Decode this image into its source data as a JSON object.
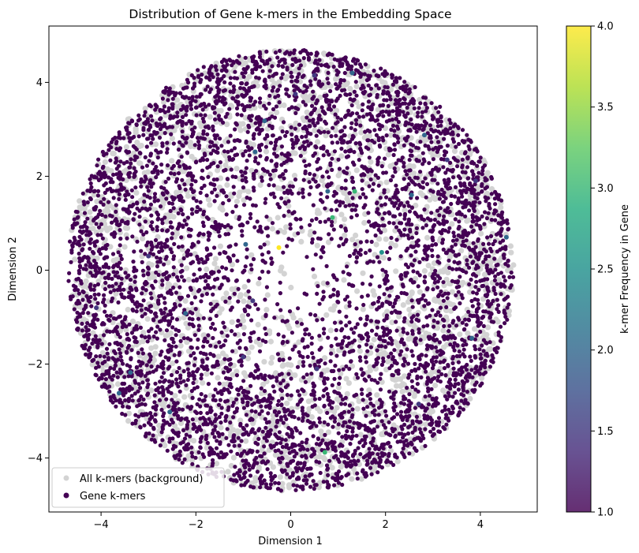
{
  "chart_data": {
    "type": "scatter",
    "title": "Distribution of Gene k-mers in the Embedding Space",
    "xlabel": "Dimension 1",
    "ylabel": "Dimension 2",
    "xlim": [
      -5.1,
      5.2
    ],
    "ylim": [
      -5.15,
      5.2
    ],
    "xticks": [
      -4,
      -2,
      0,
      2,
      4
    ],
    "yticks": [
      -4,
      -2,
      0,
      2,
      4
    ],
    "xtick_labels": [
      "−4",
      "−2",
      "0",
      "2",
      "4"
    ],
    "ytick_labels": [
      "−4",
      "−2",
      "0",
      "2",
      "4"
    ],
    "grid": false,
    "legend_position": "lower-left",
    "cloud_radius": 4.7,
    "series": [
      {
        "name": "All k-mers (background)",
        "color": "#d3d3d3",
        "kind": "background"
      },
      {
        "name": "Gene k-mers",
        "color": "#440154",
        "kind": "gene",
        "color_by": "k-mer frequency"
      }
    ],
    "highlighted_points": [
      {
        "x": -0.25,
        "y": 0.48,
        "value": 4.0
      },
      {
        "x": 1.35,
        "y": 1.68,
        "value": 3.0
      },
      {
        "x": 0.88,
        "y": 1.12,
        "value": 3.0
      },
      {
        "x": 0.72,
        "y": -3.88,
        "value": 3.0
      },
      {
        "x": 1.92,
        "y": 0.38,
        "value": 2.5
      },
      {
        "x": 0.78,
        "y": 1.68,
        "value": 2.0
      },
      {
        "x": -0.75,
        "y": 2.52,
        "value": 2.0
      },
      {
        "x": -0.55,
        "y": 3.18,
        "value": 2.0
      },
      {
        "x": -3.62,
        "y": -2.62,
        "value": 2.0
      },
      {
        "x": -3.38,
        "y": -2.18,
        "value": 2.0
      },
      {
        "x": 3.82,
        "y": -1.45,
        "value": 2.0
      },
      {
        "x": 2.82,
        "y": 2.88,
        "value": 2.0
      },
      {
        "x": -2.22,
        "y": -0.92,
        "value": 2.0
      },
      {
        "x": 4.55,
        "y": 0.7,
        "value": 2.0
      },
      {
        "x": 2.55,
        "y": 1.6,
        "value": 2.0
      },
      {
        "x": -2.55,
        "y": -3.02,
        "value": 2.0
      },
      {
        "x": -0.95,
        "y": 0.55,
        "value": 2.0
      },
      {
        "x": 1.3,
        "y": 4.2,
        "value": 2.0
      },
      {
        "x": 0.5,
        "y": 4.15,
        "value": 1.5
      },
      {
        "x": 0.1,
        "y": 3.75,
        "value": 1.5
      },
      {
        "x": 3.3,
        "y": 2.35,
        "value": 1.5
      },
      {
        "x": -0.8,
        "y": -0.65,
        "value": 1.5
      },
      {
        "x": 0.55,
        "y": -2.1,
        "value": 1.5
      },
      {
        "x": -4.1,
        "y": -0.8,
        "value": 1.5
      },
      {
        "x": -1.0,
        "y": -1.85,
        "value": 1.5
      },
      {
        "x": 2.7,
        "y": -2.85,
        "value": 1.5
      },
      {
        "x": -3.0,
        "y": 0.3,
        "value": 1.5
      },
      {
        "x": 3.9,
        "y": 1.9,
        "value": 1.5
      }
    ],
    "colorbar": {
      "label": "k-mer Frequency in Gene",
      "range": [
        1.0,
        4.0
      ],
      "ticks": [
        1.0,
        1.5,
        2.0,
        2.5,
        3.0,
        3.5,
        4.0
      ],
      "tick_labels": [
        "1.0",
        "1.5",
        "2.0",
        "2.5",
        "3.0",
        "3.5",
        "4.0"
      ],
      "colormap": "viridis"
    }
  }
}
